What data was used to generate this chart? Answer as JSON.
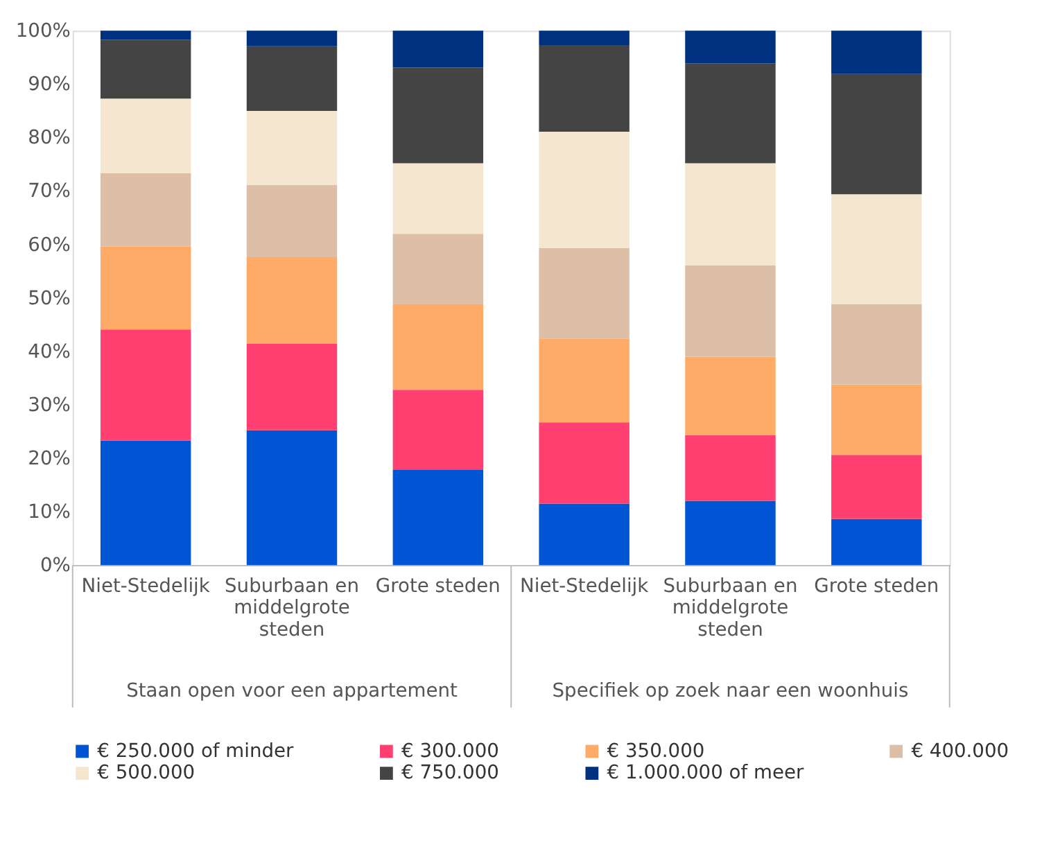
{
  "chart_data": {
    "type": "bar",
    "stacked": true,
    "categories": [
      "Niet-Stedelijk",
      "Suburbaan en middelgrote steden",
      "Grote steden",
      "Niet-Stedelijk",
      "Suburbaan en middelgrote steden",
      "Grote steden"
    ],
    "annotations": [
      "Staan open voor een appartement",
      "Specifiek op zoek naar een woonhuis"
    ],
    "series": [
      {
        "name": "€ 250.000 of minder",
        "color": "#0055d4",
        "values": [
          23.3,
          25.2,
          17.9,
          11.5,
          12.0,
          8.6
        ]
      },
      {
        "name": "€ 300.000",
        "color": "#ff4070",
        "values": [
          20.8,
          16.2,
          14.9,
          15.2,
          12.3,
          12.0
        ]
      },
      {
        "name": "€ 350.000",
        "color": "#ffaa66",
        "values": [
          15.5,
          16.2,
          16.0,
          15.7,
          14.7,
          13.2
        ]
      },
      {
        "name": "€ 400.000",
        "color": "#dcbfa6",
        "values": [
          13.7,
          13.5,
          13.2,
          16.9,
          17.1,
          15.0
        ]
      },
      {
        "name": "€ 500.000",
        "color": "#f5e6d0",
        "values": [
          14.0,
          13.9,
          13.2,
          21.8,
          19.1,
          20.6
        ]
      },
      {
        "name": "€ 750.000",
        "color": "#444444",
        "values": [
          11.0,
          12.1,
          17.9,
          16.2,
          18.7,
          22.5
        ]
      },
      {
        "name": "€ 1.000.000 of meer",
        "color": "#003080",
        "values": [
          1.7,
          2.9,
          6.9,
          2.7,
          6.1,
          8.1
        ]
      }
    ],
    "ylim": [
      0,
      100
    ],
    "yticks": [
      {
        "value": 0,
        "label": "0%"
      },
      {
        "value": 10,
        "label": "10%"
      },
      {
        "value": 20,
        "label": "20%"
      },
      {
        "value": 30,
        "label": "30%"
      },
      {
        "value": 40,
        "label": "40%"
      },
      {
        "value": 50,
        "label": "50%"
      },
      {
        "value": 60,
        "label": "60%"
      },
      {
        "value": 70,
        "label": "70%"
      },
      {
        "value": 80,
        "label": "80%"
      },
      {
        "value": 90,
        "label": "90%"
      },
      {
        "value": 100,
        "label": "100%"
      }
    ],
    "grid": false,
    "legend": "bottom"
  }
}
